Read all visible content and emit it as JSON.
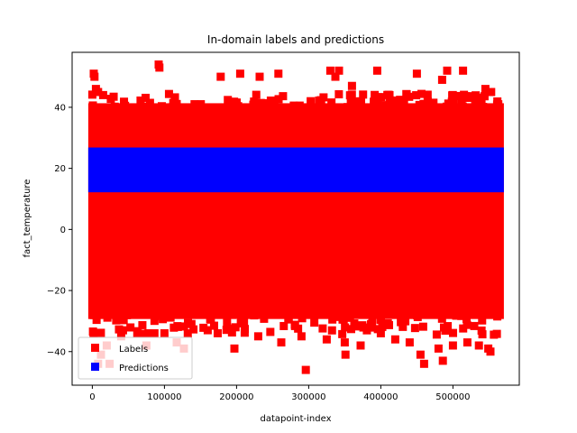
{
  "chart_data": {
    "type": "scatter",
    "title": "In-domain labels and predictions",
    "xlabel": "datapoint-index",
    "ylabel": "fact_temperature",
    "xlim": [
      -28000,
      592000
    ],
    "ylim": [
      -51,
      58
    ],
    "xticks": [
      0,
      100000,
      200000,
      300000,
      400000,
      500000
    ],
    "xtick_labels": [
      "0",
      "100000",
      "200000",
      "300000",
      "400000",
      "500000"
    ],
    "yticks": [
      -40,
      -20,
      0,
      20,
      40
    ],
    "ytick_labels": [
      "−40",
      "−20",
      "0",
      "20",
      "40"
    ],
    "grid": false,
    "legend_position": "lower-left",
    "marker": "square",
    "series": [
      {
        "name": "Labels",
        "color": "#ff0000",
        "bulk_band": {
          "x": [
            0,
            565000
          ],
          "y": [
            -28,
            40
          ]
        },
        "points": [
          [
            2000,
            51
          ],
          [
            3000,
            50
          ],
          [
            5000,
            46
          ],
          [
            8000,
            45
          ],
          [
            15000,
            44
          ],
          [
            92000,
            54
          ],
          [
            93000,
            53
          ],
          [
            178000,
            50
          ],
          [
            205000,
            51
          ],
          [
            232000,
            50
          ],
          [
            258000,
            51
          ],
          [
            330000,
            52
          ],
          [
            337000,
            50
          ],
          [
            342000,
            52
          ],
          [
            360000,
            47
          ],
          [
            395000,
            52
          ],
          [
            450000,
            51
          ],
          [
            485000,
            49
          ],
          [
            492000,
            52
          ],
          [
            514000,
            52
          ],
          [
            545000,
            46
          ],
          [
            553000,
            45
          ],
          [
            8000,
            -44
          ],
          [
            12000,
            -41
          ],
          [
            20000,
            -38
          ],
          [
            24000,
            -44
          ],
          [
            40000,
            -35
          ],
          [
            75000,
            -38
          ],
          [
            100000,
            -34
          ],
          [
            117000,
            -37
          ],
          [
            127000,
            -39
          ],
          [
            160000,
            -33
          ],
          [
            197000,
            -39
          ],
          [
            230000,
            -35
          ],
          [
            262000,
            -37
          ],
          [
            290000,
            -35
          ],
          [
            296000,
            -46
          ],
          [
            325000,
            -36
          ],
          [
            350000,
            -37
          ],
          [
            351000,
            -41
          ],
          [
            372000,
            -38
          ],
          [
            400000,
            -34
          ],
          [
            420000,
            -36
          ],
          [
            440000,
            -37
          ],
          [
            455000,
            -41
          ],
          [
            460000,
            -44
          ],
          [
            480000,
            -39
          ],
          [
            486000,
            -43
          ],
          [
            500000,
            -38
          ],
          [
            520000,
            -37
          ],
          [
            536000,
            -38
          ],
          [
            549000,
            -39
          ],
          [
            552000,
            -40
          ]
        ]
      },
      {
        "name": "Predictions",
        "color": "#0000ff",
        "bulk_band": {
          "x": [
            0,
            565000
          ],
          "y": [
            13.5,
            25.5
          ]
        },
        "points": []
      }
    ]
  }
}
